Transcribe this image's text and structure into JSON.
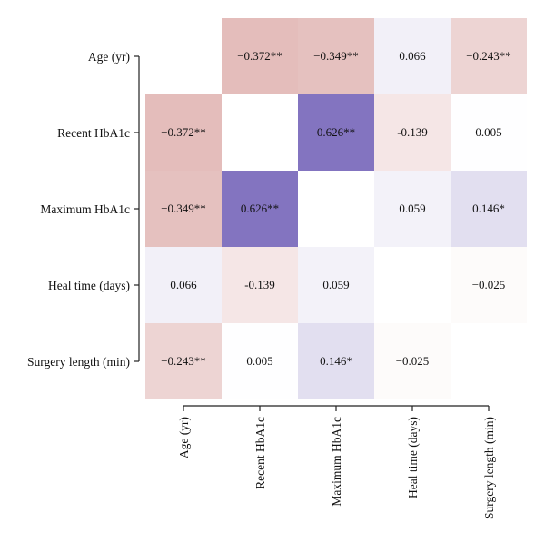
{
  "chart_data": {
    "type": "heatmap",
    "title": "",
    "xlabel": "",
    "ylabel": "",
    "rows": [
      "Age (yr)",
      "Recent HbA1c",
      "Maximum HbA1c",
      "Heal time (days)",
      "Surgery length (min)"
    ],
    "columns": [
      "Age (yr)",
      "Recent HbA1c",
      "Maximum HbA1c",
      "Heal time (days)",
      "Surgery length (min)"
    ],
    "values": [
      [
        null,
        -0.372,
        -0.349,
        0.066,
        -0.243
      ],
      [
        -0.372,
        null,
        0.626,
        -0.139,
        0.005
      ],
      [
        -0.349,
        0.626,
        null,
        0.059,
        0.146
      ],
      [
        0.066,
        -0.139,
        0.059,
        null,
        -0.025
      ],
      [
        -0.243,
        0.005,
        0.146,
        -0.025,
        null
      ]
    ],
    "labels": [
      [
        "",
        "−0.372**",
        "−0.349**",
        "0.066",
        "−0.243**"
      ],
      [
        "−0.372**",
        "",
        "0.626**",
        "-0.139",
        "0.005"
      ],
      [
        "−0.349**",
        "0.626**",
        "",
        "0.059",
        "0.146*"
      ],
      [
        "0.066",
        "-0.139",
        "0.059",
        "",
        "−0.025"
      ],
      [
        "−0.243**",
        "0.005",
        "0.146*",
        "−0.025",
        ""
      ]
    ],
    "color_scale": {
      "negative": "#cf8c88",
      "zero": "#ffffff",
      "positive": "#7e6fbe",
      "range": [
        -0.65,
        0.65
      ]
    }
  }
}
